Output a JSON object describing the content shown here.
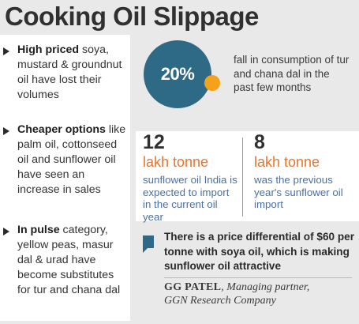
{
  "title": "Cooking Oil Slippage",
  "bullets": [
    {
      "bold": "High priced",
      "rest": " soya, mustard & groundnut oil have lost their volumes"
    },
    {
      "bold": "Cheaper options",
      "rest": " like palm oil, cottonseed oil and sunflower oil have seen an increase in sales"
    },
    {
      "bold": "In pulse",
      "rest": " category, yellow peas, masur dal & urad have become substitutes for tur and chana dal"
    }
  ],
  "highlight": {
    "value": "20%",
    "caption": "fall in consumption of tur and chana dal in the past few months",
    "circle_color": "#2e6a86",
    "dot_color": "#f4a11c"
  },
  "stats": [
    {
      "number": "12",
      "unit": "lakh tonne",
      "desc": "sunflower oil India is expected to import in the current oil year"
    },
    {
      "number": "8",
      "unit": "lakh tonne",
      "desc": "was the previous year's sunflower oil import"
    }
  ],
  "quote": {
    "text": "There is a price differential of $60 per tonne with soya oil, which is making sunflower oil attractive",
    "name": "GG PATEL",
    "role": ", Managing partner,",
    "org": "GGN Research Company"
  },
  "colors": {
    "accent_orange": "#e8742f",
    "desc_blue": "#4a6fa5",
    "background": "#e9e9e9"
  }
}
